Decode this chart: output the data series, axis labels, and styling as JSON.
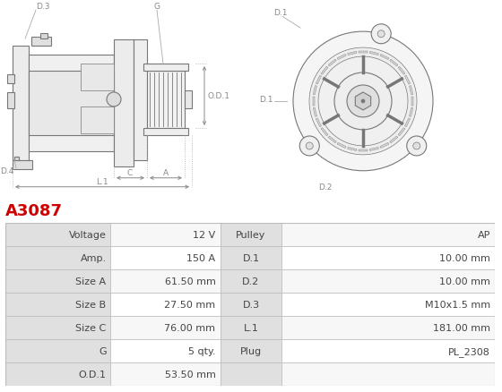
{
  "title": "A3087",
  "title_color": "#cc0000",
  "bg_color": "#ffffff",
  "table_label_bg": "#e0e0e0",
  "table_value_bg_odd": "#f7f7f7",
  "table_value_bg_even": "#ffffff",
  "border_color": "#bbbbbb",
  "text_color": "#444444",
  "draw_color": "#777777",
  "left_col_data": [
    [
      "Voltage",
      "12 V"
    ],
    [
      "Amp.",
      "150 A"
    ],
    [
      "Size A",
      "61.50 mm"
    ],
    [
      "Size B",
      "27.50 mm"
    ],
    [
      "Size C",
      "76.00 mm"
    ],
    [
      "G",
      "5 qty."
    ],
    [
      "O.D.1",
      "53.50 mm"
    ]
  ],
  "right_col_data": [
    [
      "Pulley",
      "AP"
    ],
    [
      "D.1",
      "10.00 mm"
    ],
    [
      "D.2",
      "10.00 mm"
    ],
    [
      "D.3",
      "M10x1.5 mm"
    ],
    [
      "L.1",
      "181.00 mm"
    ],
    [
      "Plug",
      "PL_2308"
    ],
    [
      "",
      ""
    ]
  ],
  "font_size_table": 8,
  "font_size_title": 13,
  "font_size_label": 6.5
}
